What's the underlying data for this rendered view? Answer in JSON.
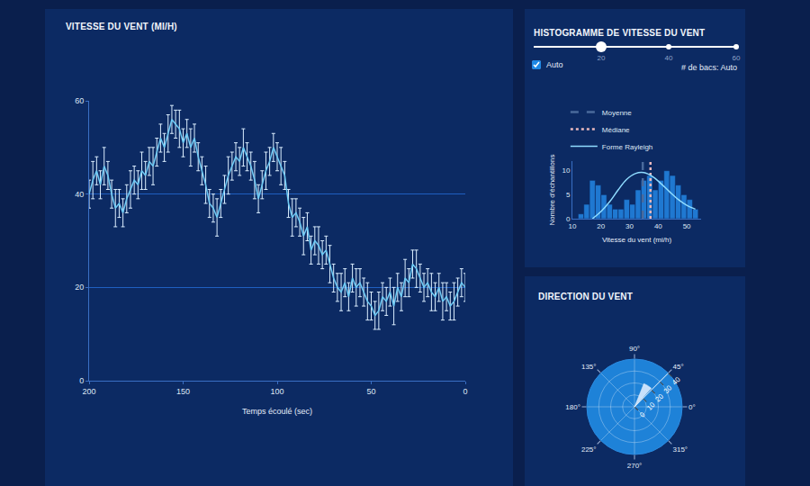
{
  "chart_data": [
    {
      "type": "line",
      "title": "VITESSE DU VENT (MI/H)",
      "x_label": "Temps écoulé (sec)",
      "color": "#6ecbf5",
      "error_color": "#dbeeff",
      "grid": true,
      "xlim": [
        200,
        0
      ],
      "xticks": [
        200,
        150,
        100,
        50,
        0
      ],
      "ylim": [
        0,
        60
      ],
      "yticks": [
        0,
        20,
        40,
        60
      ],
      "x": [
        200,
        198,
        196,
        194,
        192,
        190,
        188,
        186,
        184,
        182,
        180,
        178,
        176,
        174,
        172,
        170,
        168,
        166,
        164,
        162,
        160,
        158,
        156,
        154,
        152,
        150,
        148,
        146,
        144,
        142,
        140,
        138,
        136,
        134,
        132,
        130,
        128,
        126,
        124,
        122,
        120,
        118,
        116,
        114,
        112,
        110,
        108,
        106,
        104,
        102,
        100,
        98,
        96,
        94,
        92,
        90,
        88,
        86,
        84,
        82,
        80,
        78,
        76,
        74,
        72,
        70,
        68,
        66,
        64,
        62,
        60,
        58,
        56,
        54,
        52,
        50,
        48,
        46,
        44,
        42,
        40,
        38,
        36,
        34,
        32,
        30,
        28,
        26,
        24,
        22,
        20,
        18,
        16,
        14,
        12,
        10,
        8,
        6,
        4,
        2,
        0
      ],
      "values": [
        40,
        43,
        45,
        42,
        46,
        44,
        40,
        37,
        38,
        36,
        39,
        41,
        43,
        42,
        45,
        44,
        47,
        46,
        49,
        52,
        50,
        53,
        56,
        55,
        54,
        51,
        53,
        50,
        52,
        48,
        45,
        42,
        38,
        37,
        35,
        38,
        41,
        44,
        46,
        48,
        47,
        50,
        48,
        46,
        43,
        39,
        42,
        45,
        47,
        50,
        48,
        46,
        44,
        38,
        35,
        36,
        34,
        31,
        33,
        28,
        30,
        29,
        27,
        28,
        25,
        22,
        20,
        19,
        21,
        18,
        22,
        20,
        21,
        19,
        17,
        16,
        14,
        15,
        18,
        17,
        19,
        16,
        20,
        18,
        22,
        21,
        25,
        24,
        22,
        20,
        21,
        19,
        18,
        20,
        17,
        18,
        16,
        17,
        19,
        21,
        20
      ],
      "errors": [
        3,
        4,
        3,
        3,
        4,
        3,
        3,
        4,
        3,
        3,
        3,
        4,
        3,
        3,
        4,
        3,
        3,
        4,
        3,
        3,
        3,
        4,
        3,
        3,
        4,
        3,
        3,
        4,
        3,
        3,
        3,
        4,
        3,
        3,
        4,
        3,
        3,
        4,
        3,
        3,
        3,
        4,
        3,
        3,
        4,
        3,
        3,
        4,
        3,
        3,
        3,
        4,
        3,
        3,
        4,
        3,
        3,
        4,
        3,
        3,
        3,
        4,
        3,
        3,
        4,
        3,
        3,
        4,
        3,
        3,
        3,
        4,
        3,
        3,
        4,
        3,
        3,
        4,
        3,
        3,
        3,
        4,
        3,
        3,
        4,
        3,
        3,
        4,
        3,
        3,
        3,
        4,
        3,
        3,
        4,
        3,
        3,
        4,
        3,
        3,
        3
      ]
    },
    {
      "type": "histogram",
      "title": "HISTOGRAMME DE VITESSE DU VENT",
      "x_label": "Vitesse du vent (mi/h)",
      "y_label": "Nombre d'échantillons",
      "color": "#1f78d1",
      "grid": false,
      "legend": "top",
      "xlim": [
        10,
        55
      ],
      "xticks": [
        10,
        20,
        30,
        40,
        50
      ],
      "ylim": [
        0,
        12
      ],
      "yticks": [
        0,
        5,
        10
      ],
      "bins": [
        12,
        14,
        16,
        18,
        20,
        22,
        24,
        26,
        28,
        30,
        32,
        34,
        36,
        38,
        40,
        42,
        44,
        46,
        48,
        50,
        52,
        54
      ],
      "counts": [
        1,
        3,
        8,
        7,
        5,
        3,
        2,
        2,
        4,
        3,
        6,
        8,
        9,
        6,
        8,
        10,
        9,
        7,
        5,
        4,
        2
      ],
      "mean": {
        "name": "Moyenne",
        "value": 34.6,
        "color": "#4a6a9c",
        "line_style": "dashed"
      },
      "median": {
        "name": "Médiane",
        "value": 37.3,
        "color": "#e8b8bd",
        "line_style": "dotted"
      },
      "curve": {
        "name": "Forme Rayleigh",
        "color": "#8fdcff",
        "line_style": "solid",
        "x": [
          17,
          20,
          23,
          26,
          29,
          32,
          35,
          38,
          41,
          44,
          47,
          50,
          53
        ],
        "values": [
          0,
          1.5,
          3.5,
          6,
          8.2,
          9.4,
          9.6,
          8.8,
          7.3,
          5.6,
          4,
          2.8,
          2
        ]
      }
    },
    {
      "type": "polar_bar",
      "title": "DIRECTION DU VENT",
      "color": "#dcebff",
      "theta": [
        58
      ],
      "values": [
        21
      ],
      "rlim": [
        0,
        40
      ],
      "rticks": [
        0,
        10,
        20,
        30,
        40
      ],
      "angle_ticks": [
        {
          "value": 0,
          "label": "0°"
        },
        {
          "value": 45,
          "label": "45°"
        },
        {
          "value": 90,
          "label": "90°"
        },
        {
          "value": 135,
          "label": "135°"
        },
        {
          "value": 180,
          "label": "180°"
        },
        {
          "value": 225,
          "label": "225°"
        },
        {
          "value": 270,
          "label": "270°"
        },
        {
          "value": 315,
          "label": "315°"
        }
      ]
    }
  ],
  "controls": {
    "slider": {
      "range": [
        0,
        60
      ],
      "ticks": [
        20,
        40,
        60
      ],
      "value": 20
    },
    "checkbox": "Auto",
    "checked": true,
    "bins_label": "# de bacs: Auto"
  }
}
